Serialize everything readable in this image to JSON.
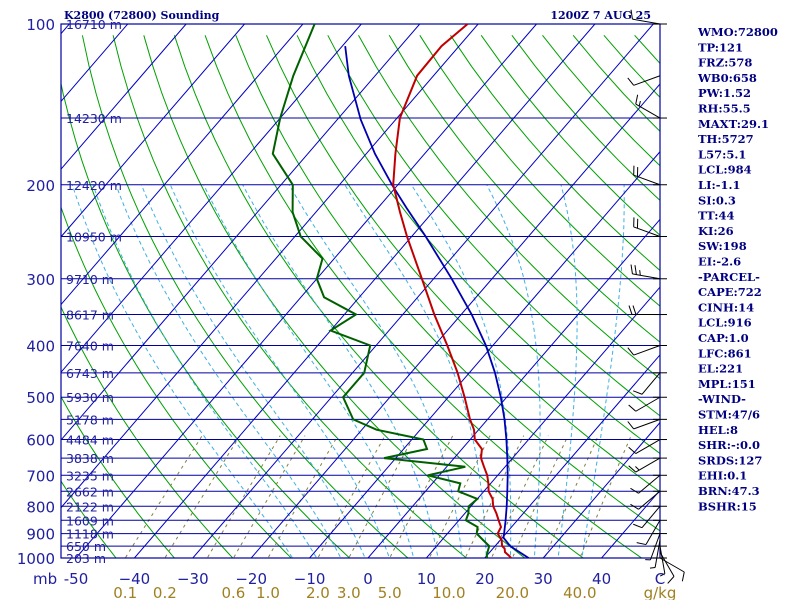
{
  "header": {
    "station": "K2800 (72800) Sounding",
    "time": "1200Z  7 AUG 25"
  },
  "indices": [
    "WMO:72800",
    "TP:121",
    "FRZ:578",
    "WB0:658",
    "PW:1.52",
    "RH:55.5",
    "MAXT:29.1",
    "TH:5727",
    "L57:5.1",
    "LCL:984",
    "LI:-1.1",
    "SI:0.3",
    "TT:44",
    "KI:26",
    "SW:198",
    "EI:-2.6",
    "-PARCEL-",
    "CAPE:722",
    "CINH:14",
    "LCL:916",
    "CAP:1.0",
    "LFC:861",
    "EL:221",
    "MPL:151",
    "-WIND-",
    "STM:47/6",
    "HEL:8",
    "SHR:-:0.0",
    "SRDS:127",
    "EHI:0.1",
    "BRN:47.3",
    "BSHR:15"
  ],
  "colors": {
    "isobar": "#0000a0",
    "isotherm": "#0000c0",
    "dry_adiabat": "#00a000",
    "moist_adiabat": "#40b0e0",
    "mixing_ratio": "#808040",
    "temperature": "#c00000",
    "dewpoint": "#006000",
    "parcel": "#0000b0",
    "wind_barb": "#000000"
  },
  "chart_data": {
    "type": "skew-t log-p",
    "x_unit_label": "C",
    "y_unit_label": "mb",
    "pressure_levels": [
      {
        "p": 100,
        "label": "100",
        "height": "16710 m"
      },
      {
        "p": 150,
        "label": "",
        "height": "14230 m"
      },
      {
        "p": 200,
        "label": "200",
        "height": "12420 m"
      },
      {
        "p": 250,
        "label": "",
        "height": "10950 m"
      },
      {
        "p": 300,
        "label": "300",
        "height": "9710 m"
      },
      {
        "p": 350,
        "label": "",
        "height": "8617 m"
      },
      {
        "p": 400,
        "label": "400",
        "height": "7640 m"
      },
      {
        "p": 450,
        "label": "",
        "height": "6743 m"
      },
      {
        "p": 500,
        "label": "500",
        "height": "5930 m"
      },
      {
        "p": 550,
        "label": "",
        "height": "5178 m"
      },
      {
        "p": 600,
        "label": "600",
        "height": "4484 m"
      },
      {
        "p": 650,
        "label": "",
        "height": "3838 m"
      },
      {
        "p": 700,
        "label": "700",
        "height": "3235 m"
      },
      {
        "p": 750,
        "label": "",
        "height": "2662 m"
      },
      {
        "p": 800,
        "label": "800",
        "height": "2122 m"
      },
      {
        "p": 850,
        "label": "",
        "height": "1609 m"
      },
      {
        "p": 900,
        "label": "900",
        "height": "1118 m"
      },
      {
        "p": 950,
        "label": "",
        "height": "650 m"
      },
      {
        "p": 1000,
        "label": "1000",
        "height": "203 m"
      }
    ],
    "temperature_ticks": [
      {
        "t": -50,
        "label": "-50"
      },
      {
        "t": -40,
        "label": "−40"
      },
      {
        "t": -30,
        "label": "−30"
      },
      {
        "t": -20,
        "label": "−20"
      },
      {
        "t": -10,
        "label": "−10"
      },
      {
        "t": 0,
        "label": "0"
      },
      {
        "t": 10,
        "label": "10"
      },
      {
        "t": 20,
        "label": "20"
      },
      {
        "t": 30,
        "label": "30"
      },
      {
        "t": 40,
        "label": "40"
      }
    ],
    "mixing_ratio_ticks": [
      {
        "w": 0.1,
        "label": "0.1"
      },
      {
        "w": 0.2,
        "label": "0.2"
      },
      {
        "w": 0.6,
        "label": "0.6"
      },
      {
        "w": 1.0,
        "label": "1.0"
      },
      {
        "w": 2.0,
        "label": "2.0"
      },
      {
        "w": 3.0,
        "label": "3.0"
      },
      {
        "w": 5.0,
        "label": "5.0"
      },
      {
        "w": 10.0,
        "label": "10.0"
      },
      {
        "w": 20.0,
        "label": "20.0"
      },
      {
        "w": 40.0,
        "label": "40.0"
      }
    ],
    "mixing_ratio_unit": "g/kg",
    "temperature_profile": [
      [
        1000,
        24.5
      ],
      [
        990,
        23.8
      ],
      [
        975,
        22.6
      ],
      [
        960,
        22.0
      ],
      [
        950,
        21.2
      ],
      [
        925,
        20.2
      ],
      [
        900,
        18.6
      ],
      [
        875,
        18.2
      ],
      [
        850,
        16.8
      ],
      [
        825,
        15.4
      ],
      [
        800,
        13.8
      ],
      [
        775,
        12.6
      ],
      [
        750,
        10.8
      ],
      [
        725,
        9.6
      ],
      [
        700,
        8.2
      ],
      [
        675,
        6.4
      ],
      [
        650,
        4.6
      ],
      [
        625,
        3.4
      ],
      [
        600,
        0.8
      ],
      [
        575,
        -0.8
      ],
      [
        550,
        -3.0
      ],
      [
        500,
        -7.2
      ],
      [
        450,
        -12.0
      ],
      [
        400,
        -17.8
      ],
      [
        350,
        -24.6
      ],
      [
        300,
        -32.0
      ],
      [
        250,
        -40.8
      ],
      [
        225,
        -45.6
      ],
      [
        200,
        -50.8
      ],
      [
        175,
        -55.0
      ],
      [
        150,
        -59.5
      ],
      [
        125,
        -62.8
      ],
      [
        110,
        -63.0
      ],
      [
        100,
        -61.8
      ]
    ],
    "dewpoint_profile": [
      [
        1000,
        20.4
      ],
      [
        990,
        20.0
      ],
      [
        975,
        19.6
      ],
      [
        950,
        19.0
      ],
      [
        925,
        17.0
      ],
      [
        900,
        15.0
      ],
      [
        875,
        14.2
      ],
      [
        850,
        11.2
      ],
      [
        825,
        10.6
      ],
      [
        800,
        9.6
      ],
      [
        775,
        10.0
      ],
      [
        750,
        5.6
      ],
      [
        725,
        4.8
      ],
      [
        700,
        -2.0
      ],
      [
        675,
        3.2
      ],
      [
        650,
        -12.0
      ],
      [
        625,
        -6.0
      ],
      [
        600,
        -8.0
      ],
      [
        575,
        -17.5
      ],
      [
        550,
        -23.0
      ],
      [
        500,
        -28.0
      ],
      [
        450,
        -28.0
      ],
      [
        400,
        -31.0
      ],
      [
        375,
        -40.0
      ],
      [
        350,
        -38.0
      ],
      [
        325,
        -46.0
      ],
      [
        300,
        -50.0
      ],
      [
        275,
        -52.0
      ],
      [
        250,
        -59.0
      ],
      [
        225,
        -64.0
      ],
      [
        200,
        -68.0
      ],
      [
        175,
        -76.0
      ],
      [
        150,
        -80.0
      ],
      [
        125,
        -84.0
      ],
      [
        100,
        -88.0
      ]
    ],
    "parcel_profile": [
      [
        1000,
        27.5
      ],
      [
        950,
        22.6
      ],
      [
        916,
        20.2
      ],
      [
        900,
        19.7
      ],
      [
        850,
        18.0
      ],
      [
        800,
        16.1
      ],
      [
        750,
        14.0
      ],
      [
        700,
        11.7
      ],
      [
        650,
        9.1
      ],
      [
        600,
        6.2
      ],
      [
        550,
        2.9
      ],
      [
        500,
        -1.0
      ],
      [
        450,
        -5.6
      ],
      [
        400,
        -11.2
      ],
      [
        350,
        -18.2
      ],
      [
        300,
        -26.9
      ],
      [
        250,
        -37.6
      ],
      [
        221,
        -45.1
      ],
      [
        200,
        -51.0
      ],
      [
        175,
        -58.5
      ],
      [
        151,
        -66.0
      ],
      [
        125,
        -74.5
      ],
      [
        110,
        -79.5
      ]
    ],
    "wind_barbs": [
      {
        "p": 1000,
        "dir": 120,
        "spd": 10
      },
      {
        "p": 975,
        "dir": 150,
        "spd": 10
      },
      {
        "p": 950,
        "dir": 170,
        "spd": 5
      },
      {
        "p": 925,
        "dir": 190,
        "spd": 5
      },
      {
        "p": 900,
        "dir": 200,
        "spd": 5
      },
      {
        "p": 850,
        "dir": 210,
        "spd": 10
      },
      {
        "p": 800,
        "dir": 220,
        "spd": 10
      },
      {
        "p": 750,
        "dir": 230,
        "spd": 10
      },
      {
        "p": 700,
        "dir": 230,
        "spd": 10
      },
      {
        "p": 650,
        "dir": 240,
        "spd": 15
      },
      {
        "p": 600,
        "dir": 240,
        "spd": 10
      },
      {
        "p": 550,
        "dir": 250,
        "spd": 10
      },
      {
        "p": 500,
        "dir": 240,
        "spd": 10
      },
      {
        "p": 450,
        "dir": 220,
        "spd": 10
      },
      {
        "p": 400,
        "dir": 250,
        "spd": 10
      },
      {
        "p": 350,
        "dir": 270,
        "spd": 20
      },
      {
        "p": 300,
        "dir": 280,
        "spd": 25
      },
      {
        "p": 250,
        "dir": 290,
        "spd": 20
      },
      {
        "p": 200,
        "dir": 290,
        "spd": 20
      },
      {
        "p": 150,
        "dir": 300,
        "spd": 15
      },
      {
        "p": 125,
        "dir": 250,
        "spd": 10
      },
      {
        "p": 100,
        "dir": 280,
        "spd": 10
      }
    ]
  }
}
